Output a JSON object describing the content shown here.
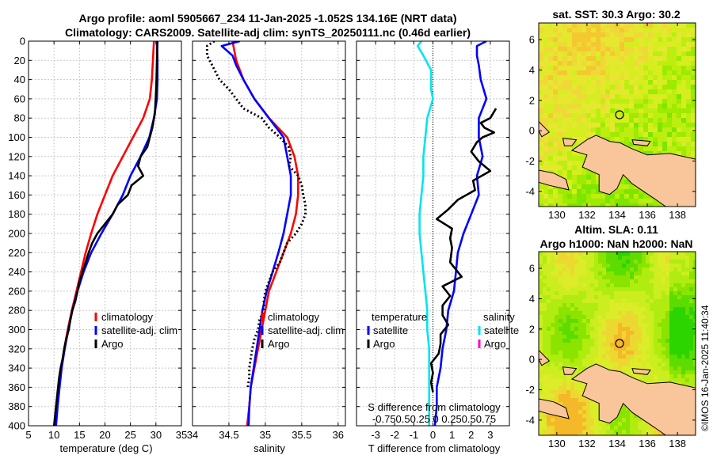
{
  "title": {
    "line1": "Argo profile: aoml 5905667_234 11-Jan-2025 -1.052S 134.16E (NRT data)",
    "line2": "Climatology: CARS2009. Satellite-adj clim: synTS_20250111.nc (0.46d earlier)"
  },
  "colors": {
    "clim": "#ff0000",
    "sat": "#0000ff",
    "argo": "#000000",
    "sal_sat": "#00e5ee",
    "sal_argo": "#ff00cc",
    "land": "#f9c59a"
  },
  "chart_data": [
    {
      "type": "line",
      "name": "temperature",
      "xlabel": "temperature (deg C)",
      "xlim": [
        5,
        35
      ],
      "ylim": [
        0,
        400
      ],
      "xticks": [
        5,
        10,
        15,
        20,
        25,
        30,
        35
      ],
      "yticks": [
        0,
        20,
        40,
        60,
        80,
        100,
        120,
        140,
        160,
        180,
        200,
        220,
        240,
        260,
        280,
        300,
        320,
        340,
        360,
        380,
        400
      ],
      "legend": [
        "climatology",
        "satellite-adj. clim",
        "Argo"
      ],
      "series": [
        {
          "name": "climatology",
          "points": [
            [
              29.6,
              0
            ],
            [
              29.4,
              20
            ],
            [
              29.2,
              40
            ],
            [
              28.8,
              60
            ],
            [
              27.5,
              80
            ],
            [
              25.5,
              100
            ],
            [
              23.5,
              120
            ],
            [
              21.5,
              140
            ],
            [
              20.0,
              160
            ],
            [
              18.5,
              180
            ],
            [
              17.3,
              200
            ],
            [
              16.2,
              220
            ],
            [
              15.3,
              240
            ],
            [
              14.4,
              260
            ],
            [
              13.5,
              280
            ],
            [
              12.7,
              300
            ],
            [
              12.0,
              320
            ],
            [
              11.5,
              340
            ],
            [
              11.0,
              360
            ],
            [
              10.6,
              380
            ],
            [
              10.3,
              400
            ]
          ]
        },
        {
          "name": "satellite-adj. clim",
          "points": [
            [
              30.2,
              0
            ],
            [
              30.3,
              20
            ],
            [
              30.3,
              40
            ],
            [
              30.2,
              60
            ],
            [
              29.6,
              80
            ],
            [
              28.7,
              100
            ],
            [
              27.0,
              120
            ],
            [
              25.0,
              140
            ],
            [
              23.5,
              160
            ],
            [
              21.5,
              180
            ],
            [
              19.3,
              200
            ],
            [
              17.3,
              220
            ],
            [
              15.8,
              240
            ],
            [
              14.6,
              260
            ],
            [
              13.6,
              280
            ],
            [
              12.8,
              300
            ],
            [
              12.1,
              320
            ],
            [
              11.5,
              340
            ],
            [
              11.1,
              360
            ],
            [
              10.7,
              380
            ],
            [
              10.4,
              400
            ]
          ]
        },
        {
          "name": "Argo",
          "points": [
            [
              30.3,
              0
            ],
            [
              30.2,
              20
            ],
            [
              30.1,
              40
            ],
            [
              30.0,
              55
            ],
            [
              29.9,
              65
            ],
            [
              29.8,
              75
            ],
            [
              29.3,
              90
            ],
            [
              28.8,
              100
            ],
            [
              28.3,
              110
            ],
            [
              27.0,
              120
            ],
            [
              26.5,
              130
            ],
            [
              27.5,
              140
            ],
            [
              25.2,
              150
            ],
            [
              24.5,
              160
            ],
            [
              22.5,
              170
            ],
            [
              21.5,
              180
            ],
            [
              20.0,
              190
            ],
            [
              18.5,
              200
            ],
            [
              17.5,
              210
            ],
            [
              16.8,
              220
            ],
            [
              16.2,
              230
            ],
            [
              15.6,
              240
            ],
            [
              15.0,
              250
            ],
            [
              14.6,
              260
            ],
            [
              14.2,
              270
            ],
            [
              13.6,
              280
            ],
            [
              13.2,
              290
            ],
            [
              12.9,
              300
            ],
            [
              12.4,
              310
            ],
            [
              12.0,
              320
            ],
            [
              11.7,
              330
            ],
            [
              11.3,
              340
            ],
            [
              11.0,
              350
            ],
            [
              10.8,
              360
            ],
            [
              10.6,
              370
            ],
            [
              10.4,
              380
            ],
            [
              10.2,
              390
            ],
            [
              10.0,
              400
            ]
          ]
        }
      ]
    },
    {
      "type": "line",
      "name": "salinity",
      "xlabel": "salinity",
      "xlim": [
        34,
        36.1
      ],
      "ylim": [
        0,
        400
      ],
      "xticks": [
        34,
        34.5,
        35,
        35.5,
        36
      ],
      "legend": [
        "climatology",
        "satellite-adj. clim",
        "Argo"
      ],
      "series": [
        {
          "name": "climatology",
          "points": [
            [
              34.55,
              0
            ],
            [
              34.6,
              20
            ],
            [
              34.7,
              40
            ],
            [
              34.85,
              60
            ],
            [
              35.05,
              80
            ],
            [
              35.3,
              100
            ],
            [
              35.4,
              120
            ],
            [
              35.45,
              140
            ],
            [
              35.45,
              160
            ],
            [
              35.42,
              180
            ],
            [
              35.35,
              200
            ],
            [
              35.25,
              220
            ],
            [
              35.15,
              240
            ],
            [
              35.05,
              260
            ],
            [
              35.0,
              280
            ],
            [
              34.95,
              300
            ],
            [
              34.9,
              320
            ],
            [
              34.85,
              340
            ],
            [
              34.8,
              360
            ],
            [
              34.78,
              380
            ],
            [
              34.75,
              400
            ]
          ]
        },
        {
          "name": "satellite-adj. clim",
          "points": [
            [
              34.65,
              0
            ],
            [
              34.4,
              5
            ],
            [
              34.55,
              15
            ],
            [
              34.6,
              25
            ],
            [
              34.7,
              40
            ],
            [
              34.85,
              60
            ],
            [
              35.05,
              80
            ],
            [
              35.25,
              100
            ],
            [
              35.3,
              120
            ],
            [
              35.35,
              140
            ],
            [
              35.35,
              160
            ],
            [
              35.3,
              180
            ],
            [
              35.25,
              200
            ],
            [
              35.18,
              220
            ],
            [
              35.1,
              240
            ],
            [
              35.02,
              260
            ],
            [
              34.96,
              280
            ],
            [
              34.92,
              300
            ],
            [
              34.88,
              320
            ],
            [
              34.84,
              340
            ],
            [
              34.8,
              360
            ],
            [
              34.78,
              380
            ],
            [
              34.77,
              400
            ]
          ]
        },
        {
          "name": "Argo",
          "style": "dotted",
          "points": [
            [
              34.3,
              0
            ],
            [
              34.2,
              5
            ],
            [
              34.2,
              15
            ],
            [
              34.27,
              25
            ],
            [
              34.37,
              40
            ],
            [
              34.5,
              50
            ],
            [
              34.6,
              60
            ],
            [
              34.7,
              70
            ],
            [
              34.95,
              80
            ],
            [
              35.05,
              90
            ],
            [
              35.2,
              100
            ],
            [
              35.32,
              110
            ],
            [
              35.35,
              120
            ],
            [
              35.33,
              130
            ],
            [
              35.45,
              140
            ],
            [
              35.5,
              150
            ],
            [
              35.52,
              160
            ],
            [
              35.55,
              170
            ],
            [
              35.55,
              180
            ],
            [
              35.5,
              190
            ],
            [
              35.42,
              200
            ],
            [
              35.3,
              210
            ],
            [
              35.25,
              220
            ],
            [
              35.2,
              230
            ],
            [
              35.1,
              240
            ],
            [
              35.05,
              250
            ],
            [
              35.0,
              260
            ],
            [
              34.98,
              270
            ],
            [
              34.98,
              280
            ],
            [
              34.92,
              290
            ],
            [
              34.9,
              300
            ],
            [
              34.85,
              310
            ],
            [
              34.82,
              320
            ],
            [
              34.8,
              330
            ],
            [
              34.78,
              340
            ],
            [
              34.78,
              350
            ],
            [
              34.76,
              360
            ]
          ]
        }
      ]
    },
    {
      "type": "line",
      "name": "difference",
      "xlabel": "T difference from climatology",
      "xlabel2": "S difference from climatology",
      "s_ticks_text": "-0.750.50.25  0  0.250.50.75",
      "xlim": [
        -4,
        4
      ],
      "ylim": [
        0,
        400
      ],
      "xticks": [
        -3,
        -2,
        -1,
        0,
        1,
        2,
        3
      ],
      "legend_left_title": "temperature",
      "legend_left": [
        "satellite",
        "Argo"
      ],
      "legend_right_title": "salinity",
      "legend_right": [
        "satellite",
        "Argo"
      ],
      "series": [
        {
          "name": "T satellite",
          "points": [
            [
              2.8,
              0
            ],
            [
              2.3,
              5
            ],
            [
              2.3,
              15
            ],
            [
              2.4,
              25
            ],
            [
              2.5,
              40
            ],
            [
              2.8,
              60
            ],
            [
              2.4,
              80
            ],
            [
              2.4,
              100
            ],
            [
              2.6,
              120
            ],
            [
              2.3,
              140
            ],
            [
              2.4,
              160
            ],
            [
              2.0,
              180
            ],
            [
              1.6,
              200
            ],
            [
              1.3,
              220
            ],
            [
              1.2,
              240
            ],
            [
              1.1,
              260
            ],
            [
              0.8,
              280
            ],
            [
              0.7,
              300
            ],
            [
              0.5,
              320
            ],
            [
              0.4,
              340
            ],
            [
              0.2,
              360
            ],
            [
              0.2,
              380
            ],
            [
              0.1,
              400
            ]
          ]
        },
        {
          "name": "T Argo",
          "points": [
            [
              3.3,
              70
            ],
            [
              3.0,
              80
            ],
            [
              2.5,
              85
            ],
            [
              2.7,
              90
            ],
            [
              3.2,
              95
            ],
            [
              2.6,
              100
            ],
            [
              2.3,
              105
            ],
            [
              2.0,
              115
            ],
            [
              2.4,
              125
            ],
            [
              3.0,
              135
            ],
            [
              2.1,
              145
            ],
            [
              2.2,
              155
            ],
            [
              1.3,
              165
            ],
            [
              0.8,
              175
            ],
            [
              0.2,
              185
            ],
            [
              1.0,
              195
            ],
            [
              0.9,
              205
            ],
            [
              1.0,
              215
            ],
            [
              0.9,
              230
            ],
            [
              1.5,
              245
            ],
            [
              0.5,
              255
            ],
            [
              0.9,
              265
            ],
            [
              0.5,
              275
            ],
            [
              0.5,
              285
            ],
            [
              0.8,
              295
            ],
            [
              0.4,
              305
            ],
            [
              0.4,
              315
            ],
            [
              0.3,
              325
            ],
            [
              -0.1,
              335
            ],
            [
              0.0,
              345
            ],
            [
              -0.1,
              355
            ],
            [
              0.0,
              365
            ]
          ]
        },
        {
          "name": "S satellite",
          "points": [
            [
              -0.6,
              0
            ],
            [
              -0.8,
              5
            ],
            [
              -0.5,
              15
            ],
            [
              -0.1,
              30
            ],
            [
              -0.1,
              50
            ],
            [
              0.0,
              60
            ],
            [
              -0.3,
              80
            ],
            [
              -0.4,
              100
            ],
            [
              -0.5,
              120
            ],
            [
              -0.5,
              140
            ],
            [
              -0.6,
              160
            ],
            [
              -0.7,
              180
            ],
            [
              -0.7,
              200
            ],
            [
              -0.6,
              220
            ],
            [
              -0.5,
              240
            ],
            [
              -0.4,
              260
            ],
            [
              -0.3,
              280
            ],
            [
              -0.3,
              300
            ],
            [
              -0.2,
              320
            ],
            [
              -0.2,
              340
            ],
            [
              -0.2,
              360
            ],
            [
              -0.2,
              380
            ],
            [
              -0.2,
              400
            ]
          ]
        }
      ]
    }
  ],
  "maps": {
    "top": {
      "title": "sat. SST: 30.3 Argo: 30.2",
      "yticks": [
        6,
        4,
        2,
        0,
        -2,
        -4
      ],
      "xticks": [
        130,
        132,
        134,
        136,
        138
      ]
    },
    "bottom": {
      "title1": "Altim. SLA: 0.11",
      "title2": "Argo h1000: NaN h2000: NaN",
      "yticks": [
        6,
        4,
        2,
        0,
        -2,
        -4
      ],
      "xticks": [
        130,
        132,
        134,
        136,
        138
      ]
    }
  },
  "watermark": "©IMOS 16-Jan-2025 11:40:34"
}
